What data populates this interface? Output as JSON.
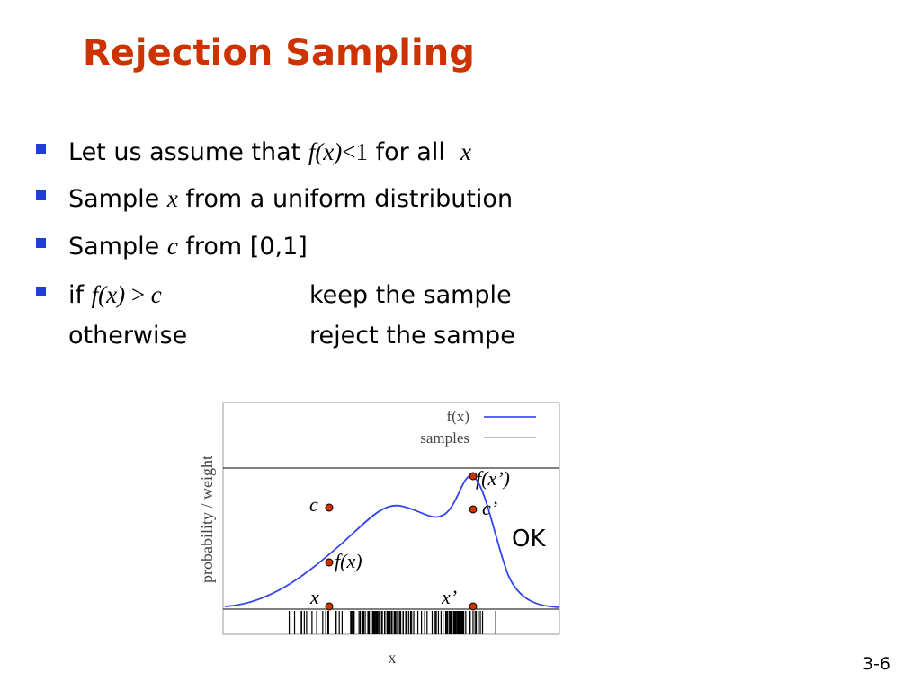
{
  "title": "Rejection Sampling",
  "bullets": [
    [
      "Let us assume that ",
      "f(x)",
      "<1",
      " for all ",
      "x"
    ],
    [
      "Sample ",
      "x",
      " from a uniform distribution"
    ],
    [
      "Sample ",
      "c",
      " from [0,1]"
    ],
    [
      "if ",
      "f(x)",
      " > ",
      "c",
      "keep the sample"
    ],
    [
      "otherwise",
      "reject the sampe"
    ]
  ],
  "figure": {
    "legend": [
      "f(x)",
      "samples"
    ],
    "y_label": "probability /  weight",
    "x_label": "x",
    "annotations": {
      "c": "c",
      "c2": "c’",
      "fx2": "f(x’)",
      "fx": "f(x)",
      "x": "x",
      "x2": "x’",
      "ok": "OK"
    }
  },
  "page_number": "3-6"
}
